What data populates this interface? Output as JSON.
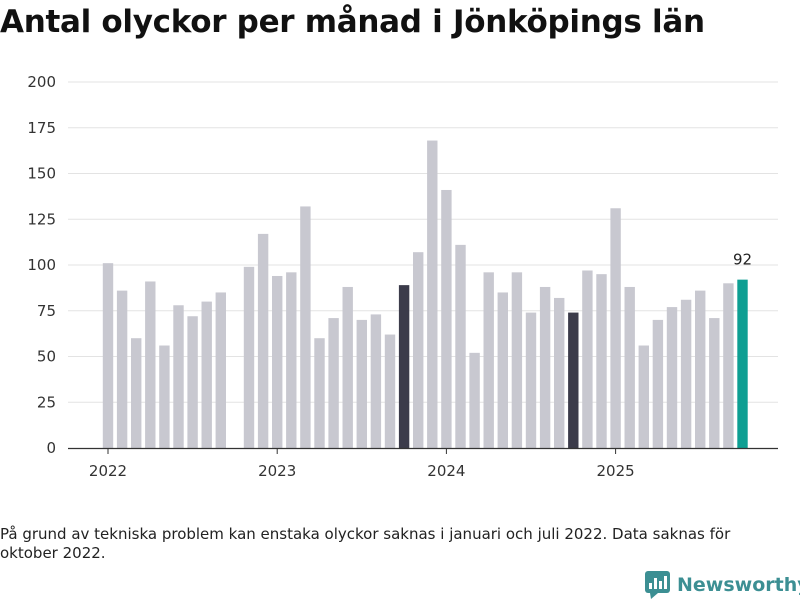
{
  "title": "Antal olyckor per månad i Jönköpings län",
  "note": "På grund av tekniska problem kan enstaka olyckor saknas i januari och juli 2022. Data saknas för oktober 2022.",
  "brand": {
    "name": "Newsworthy",
    "icon": "newsworthy-logo-icon"
  },
  "colors": {
    "default": "#c8c8d0",
    "highlight": "#3b3b4a",
    "latest": "#0e9f93",
    "grid": "#e3e3e3",
    "axis": "#333333"
  },
  "chart_data": {
    "type": "bar",
    "title": "Antal olyckor per månad i Jönköpings län",
    "xlabel": "",
    "ylabel": "",
    "ylim": [
      0,
      200
    ],
    "yticks": [
      0,
      25,
      50,
      75,
      100,
      125,
      150,
      175,
      200
    ],
    "year_labels": [
      {
        "label": "2022",
        "index": 0
      },
      {
        "label": "2023",
        "index": 12
      },
      {
        "label": "2024",
        "index": 24
      },
      {
        "label": "2025",
        "index": 36
      }
    ],
    "categories": [
      "2022-01",
      "2022-02",
      "2022-03",
      "2022-04",
      "2022-05",
      "2022-06",
      "2022-07",
      "2022-08",
      "2022-09",
      "2022-10",
      "2022-11",
      "2022-12",
      "2023-01",
      "2023-02",
      "2023-03",
      "2023-04",
      "2023-05",
      "2023-06",
      "2023-07",
      "2023-08",
      "2023-09",
      "2023-10",
      "2023-11",
      "2023-12",
      "2024-01",
      "2024-02",
      "2024-03",
      "2024-04",
      "2024-05",
      "2024-06",
      "2024-07",
      "2024-08",
      "2024-09",
      "2024-10",
      "2024-11",
      "2024-12",
      "2025-01",
      "2025-02",
      "2025-03",
      "2025-04",
      "2025-05",
      "2025-06",
      "2025-07",
      "2025-08",
      "2025-09",
      "2025-10"
    ],
    "values": [
      101,
      86,
      60,
      91,
      56,
      78,
      72,
      80,
      85,
      null,
      99,
      117,
      94,
      96,
      132,
      60,
      71,
      88,
      70,
      73,
      62,
      89,
      107,
      168,
      141,
      111,
      52,
      96,
      85,
      96,
      74,
      88,
      82,
      74,
      97,
      95,
      131,
      88,
      56,
      70,
      77,
      81,
      86,
      71,
      90,
      92
    ],
    "highlight": [
      "2023-10",
      "2024-10"
    ],
    "latest": "2025-10",
    "data_labels": [
      {
        "category": "2025-10",
        "text": "92"
      }
    ]
  }
}
